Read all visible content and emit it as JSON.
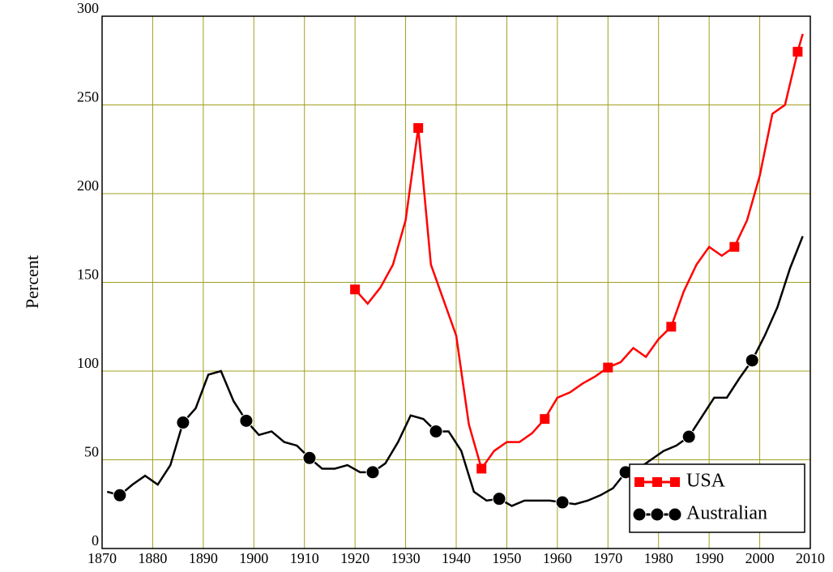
{
  "chart_data": {
    "type": "line",
    "ylabel": "Percent",
    "xlim": [
      1870,
      2010
    ],
    "xticks": [
      1870,
      1880,
      1890,
      1900,
      1910,
      1920,
      1930,
      1940,
      1950,
      1960,
      1970,
      1980,
      1990,
      2000,
      2010
    ],
    "ylim": [
      0,
      300
    ],
    "yticks": [
      0,
      50,
      100,
      150,
      200,
      250,
      300
    ],
    "grid": true,
    "grid_color": "#a0a020",
    "legend": "lower right",
    "series": [
      {
        "name": "USA",
        "color": "#ff0000",
        "marker": "square",
        "x": [
          1920,
          1922.5,
          1925,
          1927.5,
          1930,
          1932.5,
          1935,
          1937.5,
          1940,
          1942.5,
          1945,
          1947.5,
          1950,
          1952.5,
          1955,
          1957.5,
          1960,
          1962.5,
          1965,
          1967.5,
          1970,
          1972.5,
          1975,
          1977.5,
          1980,
          1982.5,
          1985,
          1987.5,
          1990,
          1992.5,
          1995,
          1997.5,
          2000,
          2002.5,
          2005,
          2007.5,
          2008.5
        ],
        "values": [
          146,
          138,
          147,
          160,
          185,
          237,
          160,
          140,
          120,
          70,
          45,
          55,
          60,
          60,
          65,
          73,
          85,
          88,
          93,
          97,
          102,
          105,
          113,
          108,
          118,
          125,
          145,
          160,
          170,
          165,
          170,
          185,
          210,
          245,
          250,
          280,
          290
        ]
      },
      {
        "name": "Australian",
        "color": "#000000",
        "marker": "circle",
        "x": [
          1871,
          1873.5,
          1876,
          1878.5,
          1881,
          1883.5,
          1886,
          1888.5,
          1891,
          1893.5,
          1896,
          1898.5,
          1901,
          1903.5,
          1906,
          1908.5,
          1911,
          1913.5,
          1916,
          1918.5,
          1921,
          1923.5,
          1926,
          1928.5,
          1931,
          1933.5,
          1936,
          1938.5,
          1941,
          1943.5,
          1946,
          1948.5,
          1951,
          1953.5,
          1956,
          1958.5,
          1961,
          1963.5,
          1966,
          1968.5,
          1971,
          1973.5,
          1976,
          1978.5,
          1981,
          1983.5,
          1986,
          1988.5,
          1991,
          1993.5,
          1996,
          1998.5,
          2001,
          2003.5,
          2006,
          2008.5
        ],
        "values": [
          32,
          30,
          36,
          41,
          36,
          47,
          71,
          79,
          98,
          100,
          83,
          72,
          64,
          66,
          60,
          58,
          51,
          45,
          45,
          47,
          43,
          43,
          48,
          60,
          75,
          73,
          66,
          66,
          55,
          32,
          27,
          28,
          24,
          27,
          27,
          27,
          26,
          25,
          27,
          30,
          34,
          43,
          45,
          50,
          55,
          58,
          63,
          74,
          85,
          85,
          96,
          106,
          120,
          136,
          158,
          176
        ]
      }
    ]
  }
}
